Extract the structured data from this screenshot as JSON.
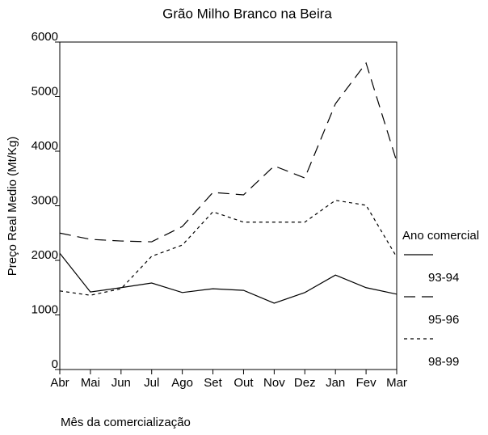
{
  "chart_data": {
    "type": "line",
    "title": "Grão Milho Branco na Beira",
    "xlabel": "Mês da comercialização",
    "ylabel": "Preço Real Medio (Mt/Kg)",
    "categories": [
      "Abr",
      "Mai",
      "Jun",
      "Jul",
      "Ago",
      "Set",
      "Out",
      "Nov",
      "Dez",
      "Jan",
      "Fev",
      "Mar"
    ],
    "legend_title": "Ano comercial",
    "legend": "right",
    "series": [
      {
        "name": "93-94",
        "color": "#000000",
        "dash": "solid",
        "values": [
          2130,
          1420,
          1500,
          1585,
          1410,
          1480,
          1450,
          1215,
          1410,
          1730,
          1500,
          1380
        ]
      },
      {
        "name": "95-96",
        "color": "#000000",
        "dash": "long",
        "values": [
          2500,
          2385,
          2355,
          2340,
          2620,
          3245,
          3200,
          3730,
          3510,
          4870,
          5615,
          3810
        ]
      },
      {
        "name": "98-99",
        "color": "#000000",
        "dash": "short",
        "values": [
          1440,
          1360,
          1480,
          2075,
          2280,
          2890,
          2700,
          2700,
          2700,
          3100,
          3010,
          2060
        ]
      }
    ],
    "ylim": [
      0,
      6000
    ],
    "yticks": [
      0,
      1000,
      2000,
      3000,
      4000,
      5000,
      6000
    ],
    "grid": false
  }
}
